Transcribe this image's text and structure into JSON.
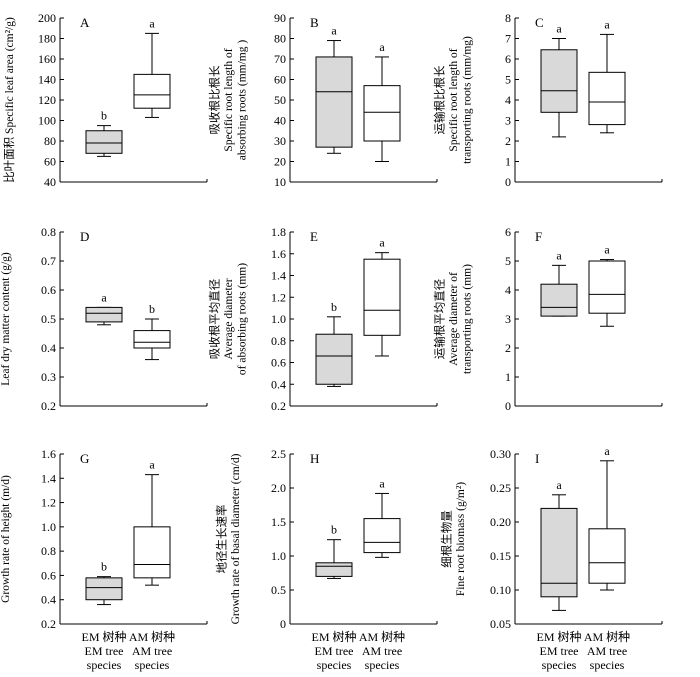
{
  "x_categories": [
    {
      "line1": "EM 树种",
      "line2": "EM tree",
      "line3": "species"
    },
    {
      "line1": "AM 树种",
      "line2": "AM tree",
      "line3": "species"
    }
  ],
  "colors": {
    "em_box": "#d9d9d9",
    "am_box": "#ffffff",
    "stroke": "#000000"
  },
  "chart_data": [
    {
      "panel": "A",
      "type": "box",
      "ylabel_lines": [
        "比叶面积 Specific leaf area (cm²/g)"
      ],
      "ylim": [
        40,
        200
      ],
      "yticks": [
        "40",
        "60",
        "80",
        "100",
        "120",
        "140",
        "160",
        "180",
        "200"
      ],
      "boxes": [
        {
          "min": 65,
          "q1": 68,
          "median": 78,
          "q3": 90,
          "max": 95,
          "letter": "b"
        },
        {
          "min": 103,
          "q1": 112,
          "median": 125,
          "q3": 145,
          "max": 185,
          "letter": "a"
        }
      ]
    },
    {
      "panel": "B",
      "type": "box",
      "ylabel_lines": [
        "吸收根比根长",
        "Specific root length of",
        "absorbing roots (mm/mg )"
      ],
      "ylim": [
        10,
        90
      ],
      "yticks": [
        "10",
        "20",
        "30",
        "40",
        "50",
        "60",
        "70",
        "80",
        "90"
      ],
      "boxes": [
        {
          "min": 24,
          "q1": 27,
          "median": 54,
          "q3": 71,
          "max": 79,
          "letter": "a"
        },
        {
          "min": 20,
          "q1": 30,
          "median": 44,
          "q3": 57,
          "max": 71,
          "letter": "a"
        }
      ]
    },
    {
      "panel": "C",
      "type": "box",
      "ylabel_lines": [
        "运输根比根长",
        "Specific root length of",
        "transporting roots (mm/mg)"
      ],
      "ylim": [
        0,
        8
      ],
      "yticks": [
        "0",
        "1",
        "2",
        "3",
        "4",
        "5",
        "6",
        "7",
        "8"
      ],
      "boxes": [
        {
          "min": 2.2,
          "q1": 3.4,
          "median": 4.45,
          "q3": 6.45,
          "max": 7.0,
          "letter": "a"
        },
        {
          "min": 2.4,
          "q1": 2.8,
          "median": 3.9,
          "q3": 5.35,
          "max": 7.2,
          "letter": "a"
        }
      ]
    },
    {
      "panel": "D",
      "type": "box",
      "ylabel_lines": [
        "叶干物质含量",
        "Leaf dry matter content (g/g)"
      ],
      "ylim": [
        0.2,
        0.8
      ],
      "yticks": [
        "0.2",
        "0.3",
        "0.4",
        "0.5",
        "0.6",
        "0.7",
        "0.8"
      ],
      "boxes": [
        {
          "min": 0.48,
          "q1": 0.49,
          "median": 0.52,
          "q3": 0.54,
          "max": 0.54,
          "letter": "a"
        },
        {
          "min": 0.36,
          "q1": 0.4,
          "median": 0.42,
          "q3": 0.46,
          "max": 0.5,
          "letter": "b"
        }
      ]
    },
    {
      "panel": "E",
      "type": "box",
      "ylabel_lines": [
        "吸收根平均直径",
        "Average diameter",
        "of absorbing roots (mm)"
      ],
      "ylim": [
        0.2,
        1.8
      ],
      "yticks": [
        "0.2",
        "0.4",
        "0.6",
        "0.8",
        "1.0",
        "1.2",
        "1.4",
        "1.6",
        "1.8"
      ],
      "boxes": [
        {
          "min": 0.38,
          "q1": 0.4,
          "median": 0.66,
          "q3": 0.86,
          "max": 1.02,
          "letter": "b"
        },
        {
          "min": 0.66,
          "q1": 0.85,
          "median": 1.08,
          "q3": 1.55,
          "max": 1.61,
          "letter": "a"
        }
      ]
    },
    {
      "panel": "F",
      "type": "box",
      "ylabel_lines": [
        "运输根平均直径",
        "Average diameter of",
        "transporting roots (mm)"
      ],
      "ylim": [
        0,
        6
      ],
      "yticks": [
        "0",
        "1",
        "2",
        "3",
        "4",
        "5",
        "6"
      ],
      "boxes": [
        {
          "min": 3.1,
          "q1": 3.1,
          "median": 3.4,
          "q3": 4.2,
          "max": 4.85,
          "letter": "a"
        },
        {
          "min": 2.75,
          "q1": 3.2,
          "median": 3.85,
          "q3": 5.0,
          "max": 5.05,
          "letter": "a"
        }
      ]
    },
    {
      "panel": "G",
      "type": "box",
      "ylabel_lines": [
        "树高生长速率",
        "Growth rate of height (m/d)"
      ],
      "ylim": [
        0.2,
        1.6
      ],
      "yticks": [
        "0.2",
        "0.4",
        "0.6",
        "0.8",
        "1.0",
        "1.2",
        "1.4",
        "1.6"
      ],
      "boxes": [
        {
          "min": 0.36,
          "q1": 0.4,
          "median": 0.5,
          "q3": 0.58,
          "max": 0.59,
          "letter": "b"
        },
        {
          "min": 0.52,
          "q1": 0.58,
          "median": 0.69,
          "q3": 1.0,
          "max": 1.43,
          "letter": "a"
        }
      ]
    },
    {
      "panel": "H",
      "type": "box",
      "ylabel_lines": [
        "地径生长速率",
        "Growth rate of basal diameter (cm/d)"
      ],
      "ylim": [
        0,
        2.5
      ],
      "yticks": [
        "0",
        "0.5",
        "1.0",
        "1.5",
        "2.0",
        "2.5"
      ],
      "boxes": [
        {
          "min": 0.67,
          "q1": 0.7,
          "median": 0.85,
          "q3": 0.9,
          "max": 1.24,
          "letter": "b"
        },
        {
          "min": 0.98,
          "q1": 1.05,
          "median": 1.2,
          "q3": 1.55,
          "max": 1.92,
          "letter": "a"
        }
      ]
    },
    {
      "panel": "I",
      "type": "box",
      "ylabel_lines": [
        "细根生物量",
        "Fine root biomass (g/m²)"
      ],
      "ylim": [
        0.05,
        0.3
      ],
      "yticks": [
        "0.05",
        "0.10",
        "0.15",
        "0.20",
        "0.25",
        "0.30"
      ],
      "boxes": [
        {
          "min": 0.07,
          "q1": 0.09,
          "median": 0.11,
          "q3": 0.22,
          "max": 0.24,
          "letter": "a"
        },
        {
          "min": 0.1,
          "q1": 0.11,
          "median": 0.14,
          "q3": 0.19,
          "max": 0.29,
          "letter": "a"
        }
      ]
    }
  ]
}
